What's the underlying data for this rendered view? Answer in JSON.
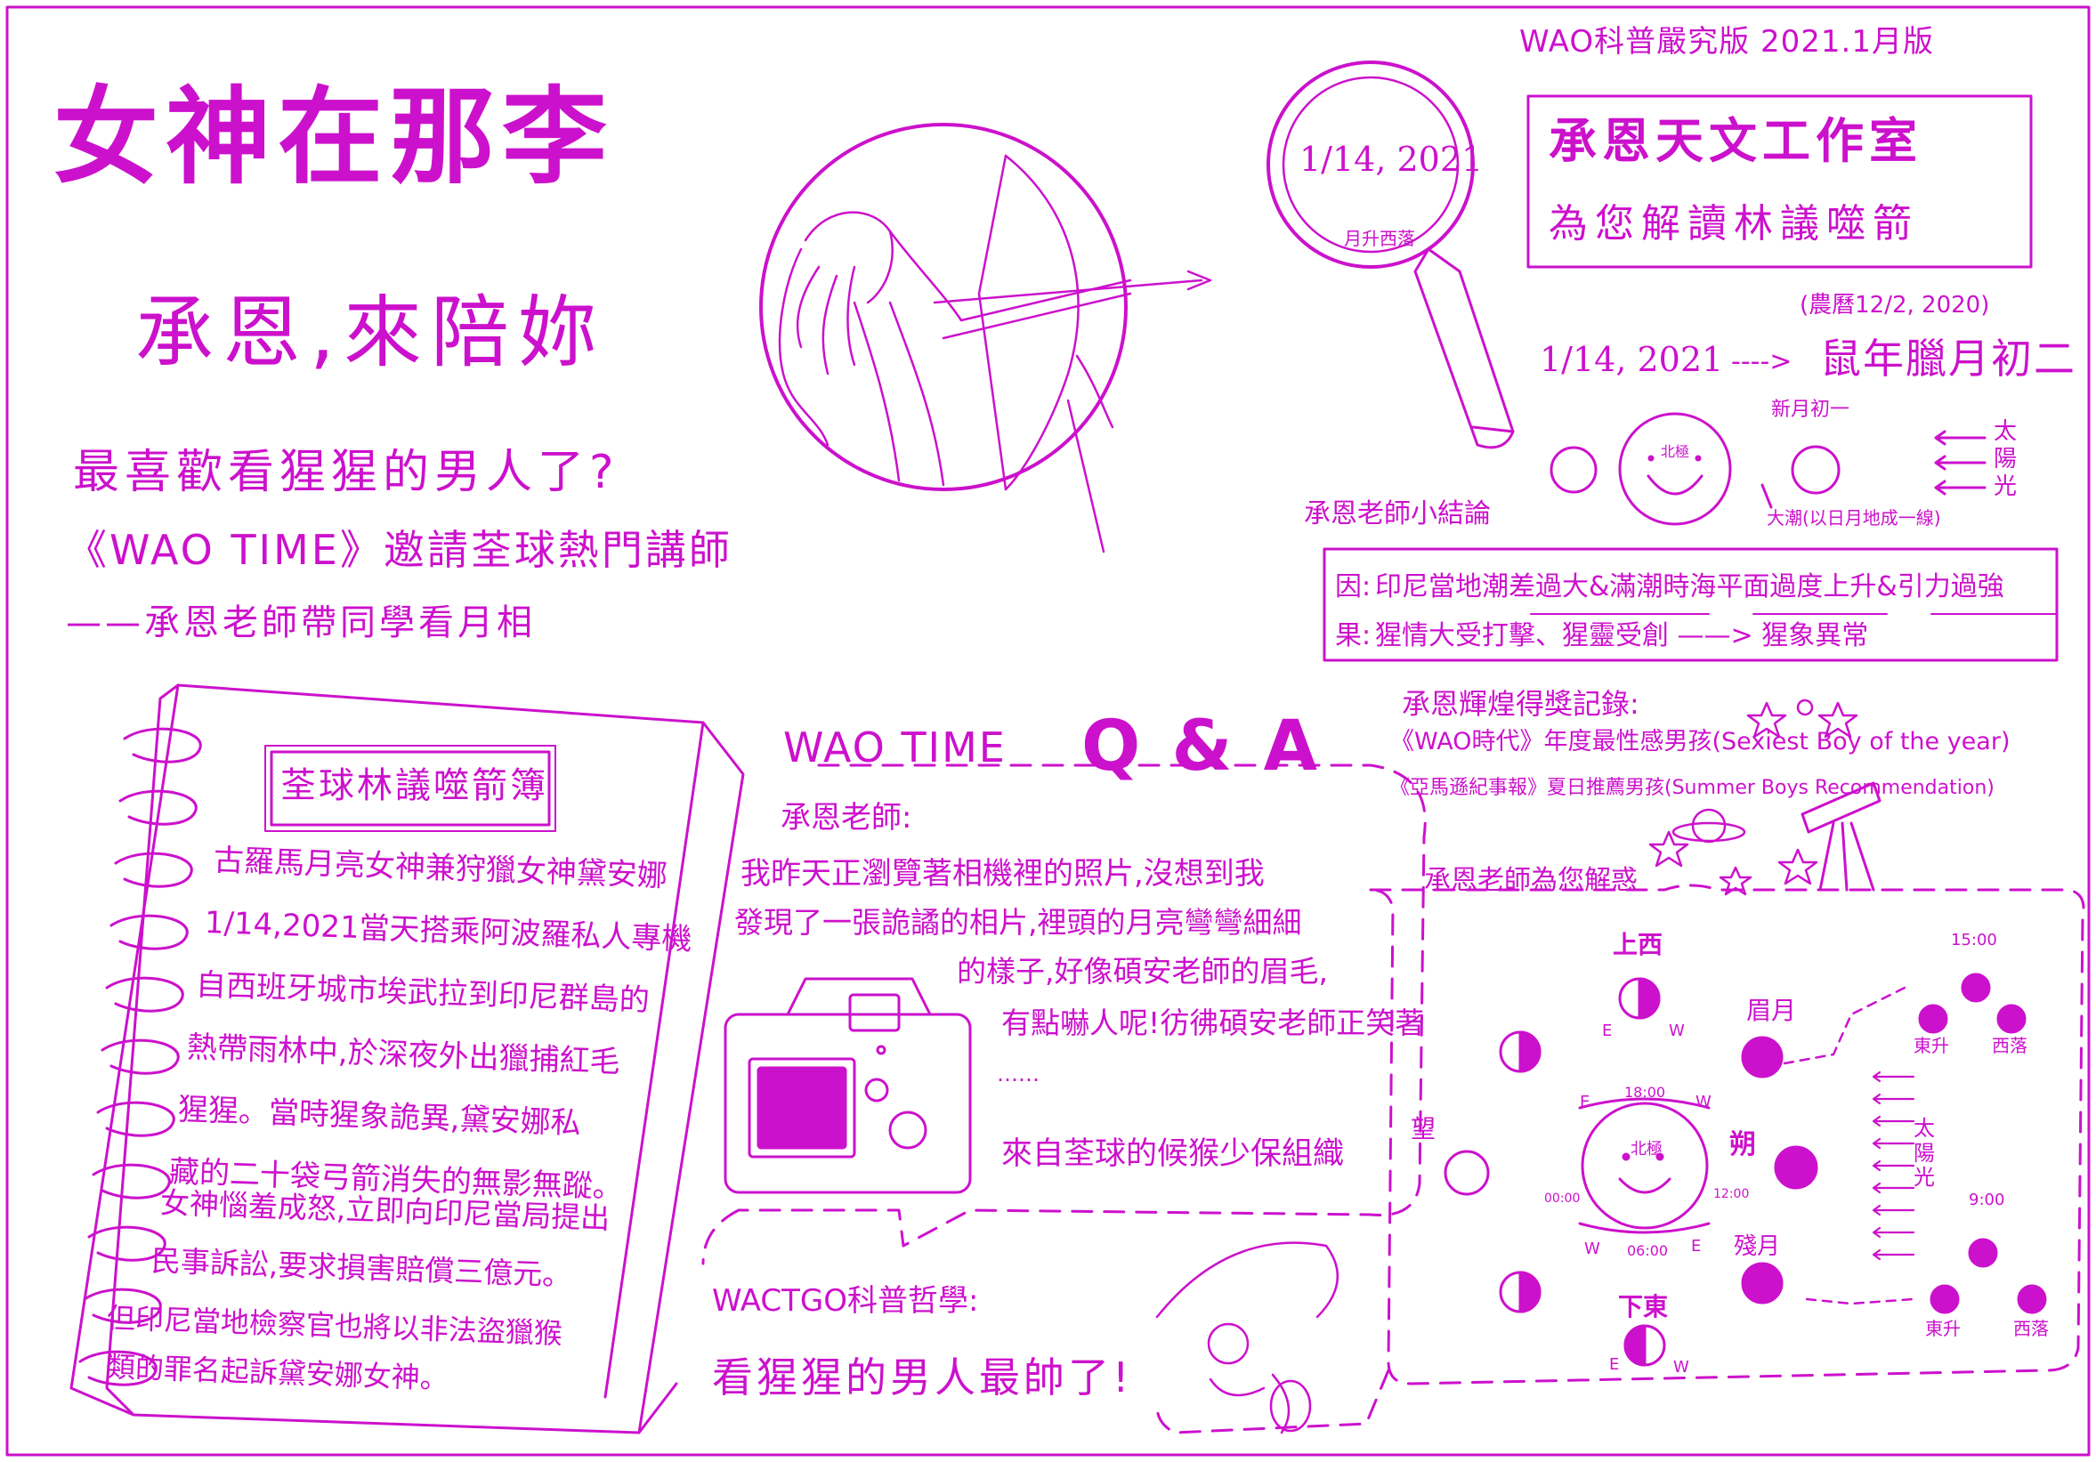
{
  "ink_color": "#cc11cc",
  "header": {
    "edition": "WAO科普嚴究版 2021.1月版"
  },
  "title": {
    "main": "女神在那李",
    "sub": "承恩,來陪妳"
  },
  "intro": {
    "question": "最喜歡看猩猩的男人了?",
    "line1": "《WAO TIME》邀請荃球熱門講師",
    "line2": "——承恩老師帶同學看月相"
  },
  "magnifier": {
    "date": "1/14, 2021",
    "note": "月升西落"
  },
  "studio": {
    "name": "承恩天文工作室",
    "subtitle": "為您解讀林議噬箭"
  },
  "date_line": {
    "lunar_note": "(農曆12/2, 2020)",
    "date": "1/14, 2021",
    "arrow": "---->",
    "lunar": "鼠年臘月初二"
  },
  "moon_diagram_small": {
    "north": "北極",
    "new_moon": "新月初一",
    "spring_tide": "大潮(以日月地成一線)",
    "sunlight": "太陽光"
  },
  "conclusion": {
    "heading": "承恩老師小結論",
    "cause_label": "因:",
    "cause_text": "印尼當地潮差過大&滿潮時海平面過度上升&引力過強",
    "effect_label": "果:",
    "effect_text": "猩情大受打擊、猩靈受創 ——> 猩象異常"
  },
  "awards": {
    "heading": "承恩輝煌得獎記錄:",
    "award1": "《WAO時代》年度最性感男孩(Sexiest Boy of the year)",
    "award2": "《亞馬遜紀事報》夏日推薦男孩(Summer Boys Recommendation)"
  },
  "notebook": {
    "tag": "荃球林議噬箭簿",
    "lines": [
      "古羅馬月亮女神兼狩獵女神黛安娜",
      "1/14,2021當天搭乘阿波羅私人專機",
      "自西班牙城市埃武拉到印尼群島的",
      "熱帶雨林中,於深夜外出獵捕紅毛",
      "猩猩。當時猩象詭異,黛安娜私",
      "藏的二十袋弓箭消失的無影無蹤。",
      "女神惱羞成怒,立即向印尼當局提出",
      "民事訴訟,要求損害賠償三億元。",
      "但印尼當地檢察官也將以非法盜獵猴",
      "類的罪名起訴黛安娜女神。"
    ]
  },
  "qa": {
    "heading_small": "WAO TIME",
    "heading_big": "Q & A",
    "asker": "承恩老師:",
    "lines": [
      "我昨天正瀏覽著相機裡的照片,沒想到我",
      "發現了一張詭譎的相片,裡頭的月亮彎彎細細",
      "的樣子,好像碩安老師的眉毛,",
      "有點嚇人呢!彷彿碩安老師正笑著",
      "……"
    ],
    "signature": "來自荃球的候猴少保組織"
  },
  "philosophy": {
    "heading": "WACTGO科普哲學:",
    "quote": "看猩猩的男人最帥了!"
  },
  "phase_diagram": {
    "heading": "承恩老師為您解惑",
    "north": "北極",
    "sunlight": "太陽光",
    "labels": {
      "top": "上西",
      "crescent": "眉月",
      "new": "朔",
      "full": "望",
      "bottom": "下東",
      "waning": "殘月",
      "rise": "東升",
      "set": "西落"
    },
    "times": {
      "t18": "18:00",
      "t06": "06:00",
      "t00": "00:00",
      "t12": "12:00",
      "t15": "15:00",
      "t9": "9:00"
    },
    "compass": {
      "E": "E",
      "W": "W"
    }
  }
}
